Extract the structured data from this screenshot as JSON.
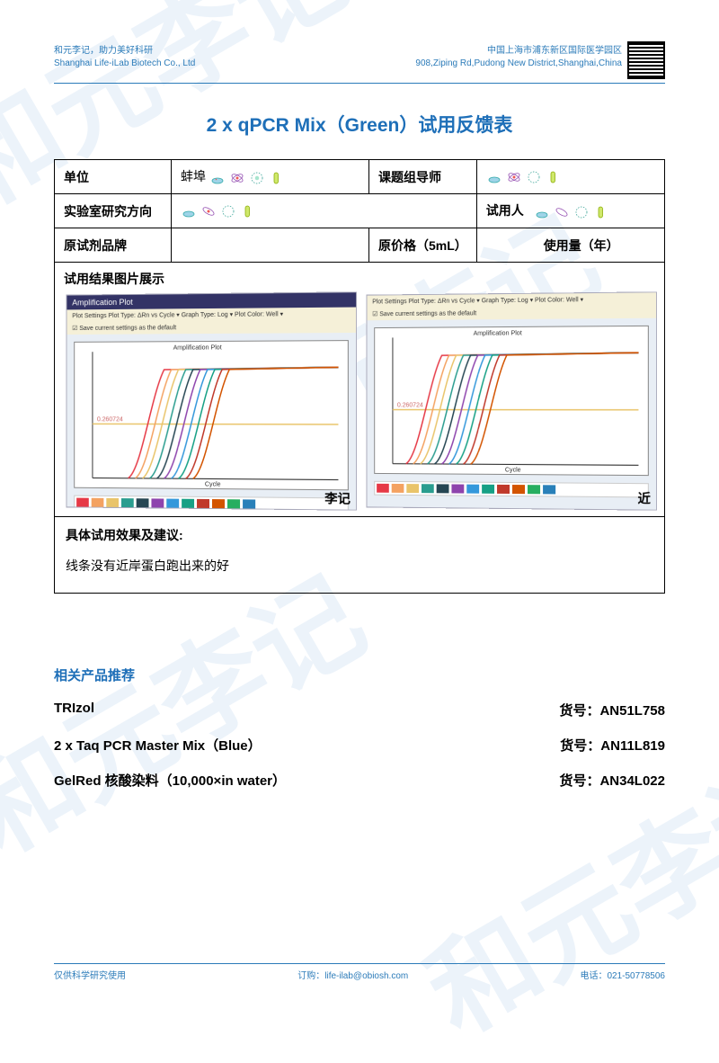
{
  "watermark_text": "和元李记",
  "header": {
    "left_line1": "和元李记，助力美好科研",
    "left_line2": "Shanghai Life-iLab Biotech Co., Ltd",
    "right_line1": "中国上海市浦东新区国际医学园区",
    "right_line2": "908,Ziping Rd,Pudong New District,Shanghai,China"
  },
  "title": "2 x qPCR Mix（Green）试用反馈表",
  "form": {
    "unit_label": "单位",
    "unit_value": "蚌埠",
    "advisor_label": "课题组导师",
    "direction_label": "实验室研究方向",
    "user_label": "试用人",
    "brand_label": "原试剂品牌",
    "price_label": "原价格（5mL）",
    "usage_label": "使用量（年）"
  },
  "img_section_title": "试用结果图片展示",
  "screenshot": {
    "window_title": "Amplification Plot",
    "toolbar_text": "Plot Settings   Plot Type: ΔRn vs Cycle ▾   Graph Type: Log ▾   Plot Color: Well ▾",
    "checkbox_text": "☑ Save current settings as the default",
    "chart_title": "Amplification Plot",
    "x_label": "Cycle",
    "threshold_label": "0.260724",
    "curve_colors": [
      "#e63946",
      "#f4a261",
      "#e9c46a",
      "#2a9d8f",
      "#264653",
      "#8e44ad",
      "#3498db",
      "#16a085",
      "#c0392b",
      "#d35400"
    ],
    "threshold_color": "#e9c46a",
    "legend_colors": [
      "#e63946",
      "#f4a261",
      "#e9c46a",
      "#2a9d8f",
      "#264653",
      "#8e44ad",
      "#3498db",
      "#16a085",
      "#c0392b",
      "#d35400",
      "#27ae60",
      "#2980b9"
    ]
  },
  "img_caption_left": "李记",
  "img_caption_right": "近",
  "feedback_title": "具体试用效果及建议:",
  "feedback_body": "线条没有近岸蛋白跑出来的好",
  "related_title": "相关产品推荐",
  "products": [
    {
      "name": "TRIzol",
      "sku_label": "货号：",
      "sku": "AN51L758"
    },
    {
      "name": "2 x Taq PCR Master Mix（Blue）",
      "sku_label": "货号：",
      "sku": "AN11L819"
    },
    {
      "name": "GelRed  核酸染料（10,000×in water）",
      "sku_label": "货号：",
      "sku": "AN34L022"
    }
  ],
  "footer": {
    "left": "仅供科学研究使用",
    "center": "订购：life-ilab@obiosh.com",
    "right": "电话：021-50778506"
  },
  "colors": {
    "brand_blue": "#1e6fb8",
    "line_blue": "#2b7bb9"
  }
}
